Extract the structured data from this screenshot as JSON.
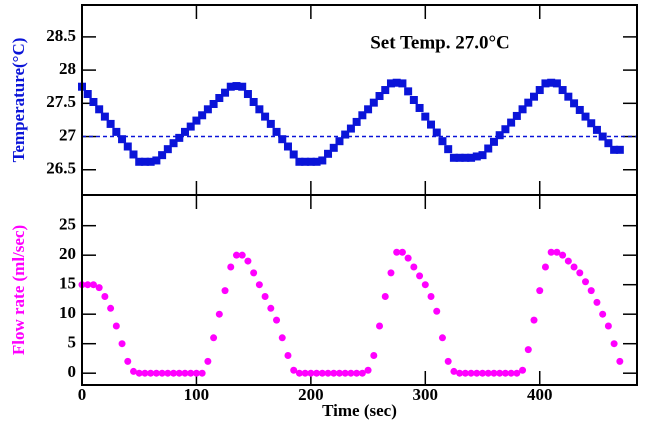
{
  "chart_data": [
    {
      "type": "scatter",
      "ylabel": "Temperature(°C)",
      "annotation": "Set Temp. 27.0°C",
      "reference_line": 27,
      "xlim": [
        0,
        485
      ],
      "xticks": [
        0,
        100,
        200,
        300,
        400
      ],
      "ylim": [
        26.12,
        28.98
      ],
      "yticks": [
        26.5,
        27,
        27.5,
        28,
        28.5
      ],
      "marker": "square",
      "series": [
        {
          "color": "#0a14d8",
          "x": [
            0,
            5,
            10,
            15,
            20,
            25,
            30,
            35,
            40,
            45,
            50,
            55,
            60,
            65,
            70,
            75,
            80,
            85,
            90,
            95,
            100,
            105,
            110,
            115,
            120,
            125,
            130,
            135,
            140,
            145,
            150,
            155,
            160,
            165,
            170,
            175,
            180,
            185,
            190,
            195,
            200,
            205,
            210,
            215,
            220,
            225,
            230,
            235,
            240,
            245,
            250,
            255,
            260,
            265,
            270,
            275,
            280,
            285,
            290,
            295,
            300,
            305,
            310,
            315,
            320,
            325,
            330,
            335,
            340,
            345,
            350,
            355,
            360,
            365,
            370,
            375,
            380,
            385,
            390,
            395,
            400,
            405,
            410,
            415,
            420,
            425,
            430,
            435,
            440,
            445,
            450,
            455,
            460,
            465,
            470
          ],
          "values": [
            27.75,
            27.64,
            27.52,
            27.41,
            27.3,
            27.19,
            27.07,
            26.96,
            26.85,
            26.73,
            26.62,
            26.62,
            26.62,
            26.64,
            26.72,
            26.81,
            26.9,
            26.98,
            27.07,
            27.15,
            27.24,
            27.32,
            27.41,
            27.49,
            27.58,
            27.66,
            27.75,
            27.76,
            27.75,
            27.64,
            27.52,
            27.41,
            27.3,
            27.19,
            27.07,
            26.96,
            26.85,
            26.73,
            26.62,
            26.62,
            26.62,
            26.62,
            26.64,
            26.74,
            26.83,
            26.93,
            27.03,
            27.12,
            27.22,
            27.32,
            27.41,
            27.51,
            27.61,
            27.7,
            27.8,
            27.81,
            27.8,
            27.68,
            27.55,
            27.43,
            27.3,
            27.18,
            27.06,
            26.93,
            26.81,
            26.68,
            26.68,
            26.68,
            26.68,
            26.7,
            26.72,
            26.82,
            26.92,
            27.02,
            27.11,
            27.21,
            27.31,
            27.41,
            27.51,
            27.6,
            27.7,
            27.8,
            27.81,
            27.8,
            27.7,
            27.6,
            27.5,
            27.4,
            27.3,
            27.2,
            27.1,
            27.0,
            26.9,
            26.8,
            26.8
          ]
        }
      ]
    },
    {
      "type": "scatter",
      "ylabel": "Flow rate (ml/sec)",
      "xlabel": "Time (sec)",
      "xlim": [
        0,
        485
      ],
      "xticks": [
        0,
        100,
        200,
        300,
        400
      ],
      "ylim": [
        -2,
        30.2
      ],
      "yticks": [
        0,
        5,
        10,
        15,
        20,
        25
      ],
      "marker": "circle",
      "series": [
        {
          "color": "#ff00ff",
          "x": [
            0,
            5,
            10,
            15,
            20,
            25,
            30,
            35,
            40,
            45,
            50,
            55,
            60,
            65,
            70,
            75,
            80,
            85,
            90,
            95,
            100,
            105,
            110,
            115,
            120,
            125,
            130,
            135,
            140,
            145,
            150,
            155,
            160,
            165,
            170,
            175,
            180,
            185,
            190,
            195,
            200,
            205,
            210,
            215,
            220,
            225,
            230,
            235,
            240,
            245,
            250,
            255,
            260,
            265,
            270,
            275,
            280,
            285,
            290,
            295,
            300,
            305,
            310,
            315,
            320,
            325,
            330,
            335,
            340,
            345,
            350,
            355,
            360,
            365,
            370,
            375,
            380,
            385,
            390,
            395,
            400,
            405,
            410,
            415,
            420,
            425,
            430,
            435,
            440,
            445,
            450,
            455,
            460,
            465,
            470
          ],
          "values": [
            15,
            15,
            15,
            14.5,
            13,
            11,
            8,
            5,
            2,
            0.3,
            0,
            0,
            0,
            0,
            0,
            0,
            0,
            0,
            0,
            0,
            0,
            0,
            2,
            6,
            10,
            14,
            18,
            20,
            20,
            19,
            17,
            15,
            13,
            11,
            9,
            6,
            3,
            0.5,
            0,
            0,
            0,
            0,
            0,
            0,
            0,
            0,
            0,
            0,
            0,
            0,
            0.5,
            3,
            8,
            13,
            17,
            20.5,
            20.5,
            19.5,
            18,
            16.5,
            15,
            13,
            10.5,
            6,
            2,
            0.3,
            0,
            0,
            0,
            0,
            0,
            0,
            0,
            0,
            0,
            0,
            0,
            0.5,
            4,
            9,
            14,
            18,
            20.5,
            20.5,
            20,
            19,
            18,
            17,
            15.5,
            14,
            12,
            10,
            8,
            5,
            2
          ]
        }
      ]
    }
  ]
}
